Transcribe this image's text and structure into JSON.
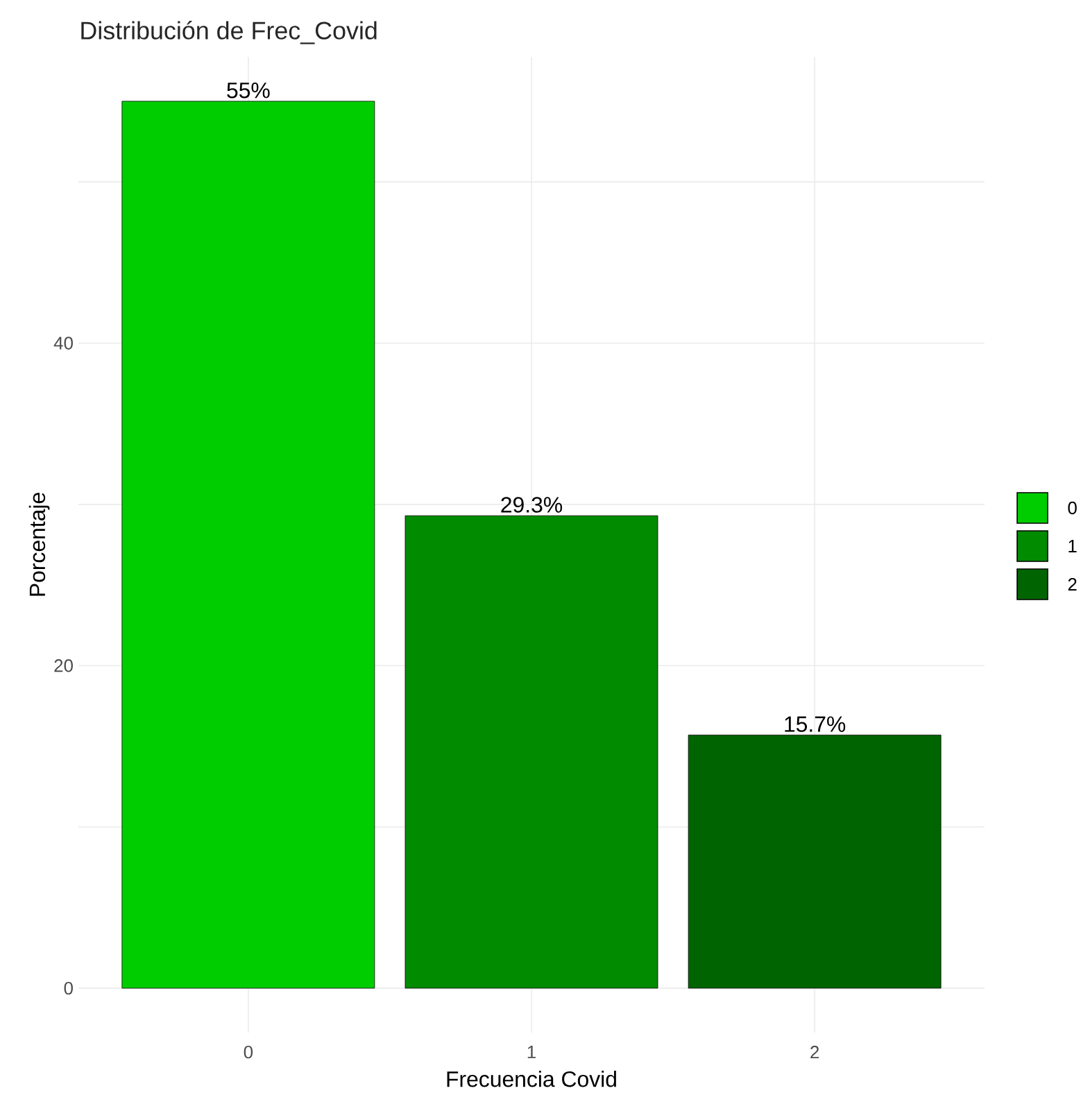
{
  "chart_data": {
    "type": "bar",
    "title": "Distribución de Frec_Covid",
    "xlabel": "Frecuencia Covid",
    "ylabel": "Porcentaje",
    "categories": [
      "0",
      "1",
      "2"
    ],
    "series": [
      {
        "name": "0",
        "color": "#00cd00",
        "values": [
          55,
          null,
          null
        ],
        "value_labels": [
          "55%",
          null,
          null
        ]
      },
      {
        "name": "1",
        "color": "#008b00",
        "values": [
          null,
          29.3,
          null
        ],
        "value_labels": [
          null,
          "29.3%",
          null
        ]
      },
      {
        "name": "2",
        "color": "#006400",
        "values": [
          null,
          null,
          15.7
        ],
        "value_labels": [
          null,
          null,
          "15.7%"
        ]
      }
    ],
    "ylim": [
      -2.75,
      57.75
    ],
    "yticks": [
      0,
      {
        "value": 10,
        "label": null
      },
      20,
      {
        "value": 30,
        "label": null
      },
      40,
      {
        "value": 50,
        "label": null
      }
    ],
    "grid": true,
    "legend": "right"
  }
}
